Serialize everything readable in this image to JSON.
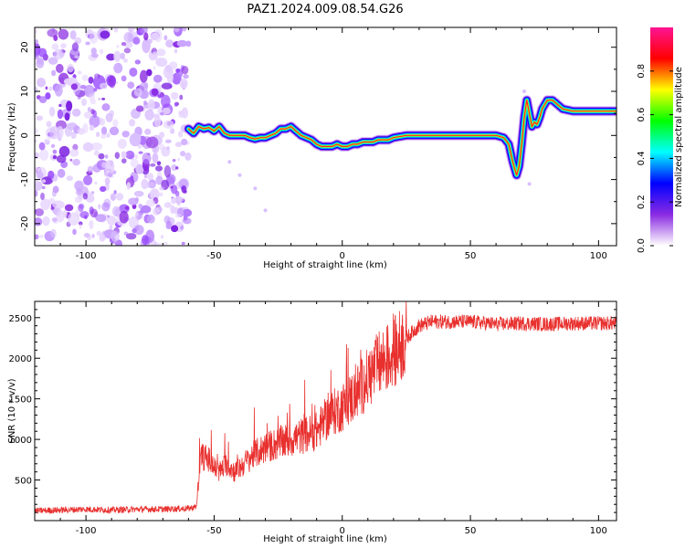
{
  "title": "PAZ1.2024.009.08.54.G26",
  "chart_data": [
    {
      "type": "heatmap",
      "xlabel": "Height of straight line (km)",
      "ylabel": "Frequency (Hz)",
      "xlim": [
        -120,
        107
      ],
      "ylim": [
        -25,
        24.5
      ],
      "x_ticks": [
        "-100",
        "-50",
        "0",
        "50",
        "100"
      ],
      "x_tick_values": [
        -100,
        -50,
        0,
        50,
        100
      ],
      "y_ticks": [
        "-20",
        "-10",
        "0",
        "10",
        "20"
      ],
      "y_tick_values": [
        -20,
        -10,
        0,
        10,
        20
      ],
      "noise_region_x": [
        -120,
        -60
      ],
      "signal_ridge": {
        "x": [
          -60,
          -58,
          -56,
          -54,
          -52,
          -50,
          -48,
          -46,
          -44,
          -42,
          -40,
          -38,
          -36,
          -34,
          -32,
          -30,
          -28,
          -26,
          -24,
          -22,
          -20,
          -18,
          -16,
          -14,
          -12,
          -10,
          -8,
          -6,
          -4,
          -2,
          0,
          2,
          4,
          6,
          8,
          10,
          12,
          14,
          16,
          18,
          20,
          25,
          30,
          35,
          40,
          45,
          50,
          55,
          60,
          63,
          65,
          66.5,
          68,
          69,
          70,
          71,
          72,
          73,
          74,
          75,
          76,
          77,
          78,
          80,
          82,
          84,
          86,
          90,
          95,
          100,
          105,
          107
        ],
        "freq_hz": [
          1.5,
          0.5,
          2.0,
          1.5,
          1.8,
          1.0,
          2.0,
          0.5,
          0.0,
          0.0,
          0.0,
          0.0,
          -0.5,
          -0.8,
          -0.5,
          -0.5,
          0.0,
          0.5,
          1.5,
          1.5,
          2.0,
          1.0,
          0.0,
          -0.5,
          -1.0,
          -2.0,
          -2.5,
          -2.5,
          -2.5,
          -2.0,
          -2.5,
          -2.5,
          -2.0,
          -2.0,
          -1.5,
          -1.5,
          -1.5,
          -1.0,
          -1.0,
          -1.0,
          -0.5,
          0.0,
          0.0,
          0.0,
          0.0,
          0.0,
          0.0,
          0.0,
          0.0,
          -0.5,
          -2.0,
          -6.0,
          -9.0,
          -7.0,
          -2.0,
          4.0,
          8.0,
          5.0,
          2.0,
          3.0,
          2.5,
          4.0,
          6.0,
          8.0,
          8.0,
          7.0,
          6.0,
          5.5,
          5.5,
          5.5,
          5.5,
          5.5
        ]
      },
      "colorbar": {
        "label": "Normalized spectral amplitude",
        "range": [
          0,
          1
        ],
        "ticks": [
          "0.0",
          "0.2",
          "0.4",
          "0.6",
          "0.8"
        ],
        "tick_values": [
          0.0,
          0.2,
          0.4,
          0.6,
          0.8
        ],
        "colors": [
          "#ffffff",
          "#8a2be2",
          "#0000ff",
          "#00ffff",
          "#00ff00",
          "#ffff00",
          "#ff0000",
          "#ff1493"
        ]
      }
    },
    {
      "type": "line",
      "xlabel": "Height of straight line (km)",
      "ylabel": "SNR (10 * v/v)",
      "xlim": [
        -120,
        107
      ],
      "ylim": [
        0,
        2700
      ],
      "x_ticks": [
        "-100",
        "-50",
        "0",
        "50",
        "100"
      ],
      "x_tick_values": [
        -100,
        -50,
        0,
        50,
        100
      ],
      "y_ticks": [
        "500",
        "1000",
        "1500",
        "2000",
        "2500"
      ],
      "y_tick_values": [
        500,
        1000,
        1500,
        2000,
        2500
      ],
      "series": [
        {
          "color": "#e8302e",
          "x": [
            -120,
            -110,
            -100,
            -90,
            -80,
            -70,
            -60,
            -57,
            -55,
            -52,
            -50,
            -48,
            -45,
            -42,
            -40,
            -35,
            -30,
            -25,
            -20,
            -15,
            -10,
            -5,
            0,
            5,
            10,
            15,
            20,
            25,
            30,
            35,
            40,
            45,
            50,
            60,
            70,
            80,
            90,
            100,
            107
          ],
          "values": [
            120,
            130,
            140,
            130,
            140,
            140,
            150,
            170,
            800,
            750,
            650,
            600,
            700,
            600,
            650,
            800,
            900,
            950,
            1000,
            1050,
            1100,
            1300,
            1400,
            1550,
            1750,
            1950,
            2050,
            2250,
            2400,
            2450,
            2450,
            2450,
            2450,
            2420,
            2430,
            2420,
            2430,
            2430,
            2430
          ]
        }
      ]
    }
  ]
}
